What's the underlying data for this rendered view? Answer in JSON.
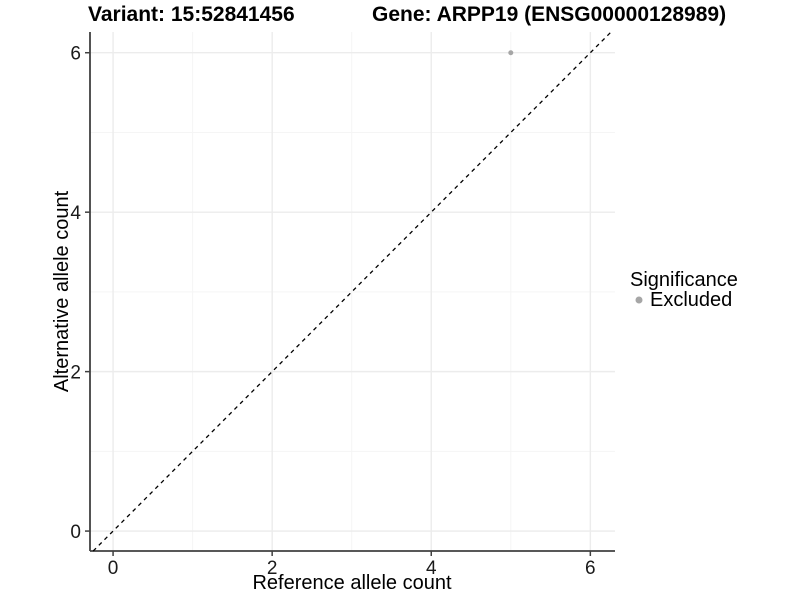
{
  "header": {
    "title_left": "Variant: 15:52841456",
    "title_right": "Gene: ARPP19 (ENSG00000128989)"
  },
  "chart_data": {
    "type": "scatter",
    "xlabel": "Reference allele count",
    "ylabel": "Alternative allele count",
    "xlim": [
      -0.29,
      6.31
    ],
    "ylim": [
      -0.25,
      6.26
    ],
    "xticks": [
      0,
      2,
      4,
      6
    ],
    "yticks": [
      0,
      2,
      4,
      6
    ],
    "xticks_minor": [
      1,
      3,
      5
    ],
    "yticks_minor": [
      1,
      3,
      5
    ],
    "grid": "major+minor",
    "series": [
      {
        "name": "Excluded",
        "color": "#a6a6a6",
        "points": [
          {
            "x": 5,
            "y": 6
          }
        ]
      }
    ],
    "reference_line": {
      "slope": 1,
      "intercept": 0,
      "style": "dashed",
      "color": "#000000"
    },
    "legend": {
      "title": "Significance",
      "position": "right",
      "entries": [
        {
          "label": "Excluded",
          "color": "#a6a6a6"
        }
      ]
    }
  },
  "colors": {
    "background": "#ffffff",
    "grid_major": "#ececec",
    "grid_minor": "#f5f5f5",
    "axis_line": "#404040",
    "tick_mark": "#404040",
    "point": "#a6a6a6",
    "reference_line": "#000000"
  }
}
